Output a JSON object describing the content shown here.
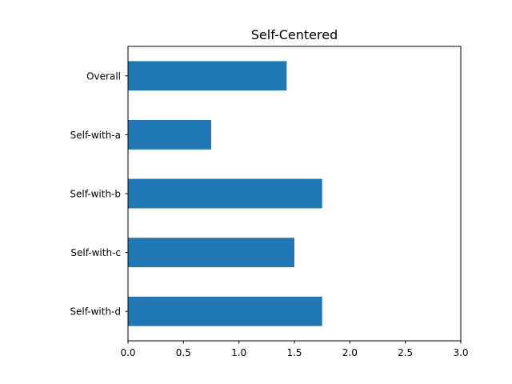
{
  "chart_data": {
    "type": "bar",
    "orientation": "horizontal",
    "title": "Self-Centered",
    "xlabel": "",
    "ylabel": "",
    "categories": [
      "Overall",
      "Self-with-a",
      "Self-with-b",
      "Self-with-c",
      "Self-with-d"
    ],
    "values": [
      1.43,
      0.75,
      1.75,
      1.5,
      1.75
    ],
    "xlim": [
      0,
      3
    ],
    "xticks": [
      0.0,
      0.5,
      1.0,
      1.5,
      2.0,
      2.5,
      3.0
    ],
    "xtick_labels": [
      "0.0",
      "0.5",
      "1.0",
      "1.5",
      "2.0",
      "2.5",
      "3.0"
    ],
    "bar_color": "#1f77b4",
    "grid": false,
    "legend": false
  }
}
